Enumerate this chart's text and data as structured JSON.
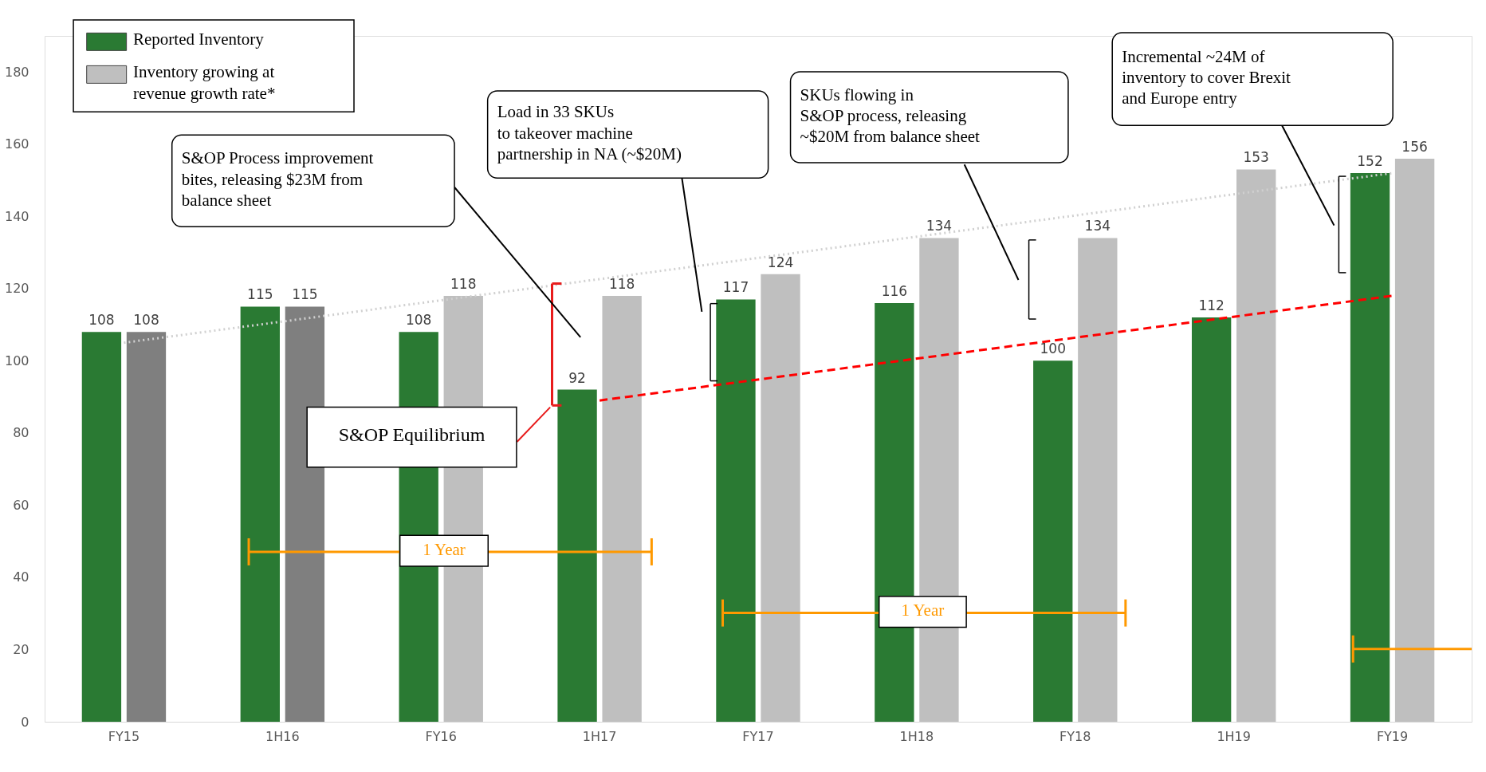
{
  "chart_data": {
    "type": "bar",
    "categories": [
      "FY15",
      "1H16",
      "FY16",
      "1H17",
      "FY17",
      "1H18",
      "FY18",
      "1H19",
      "FY19"
    ],
    "series": [
      {
        "name": "Reported Inventory",
        "color": "#2a7a33",
        "values": [
          108,
          115,
          108,
          92,
          117,
          116,
          100,
          112,
          152
        ],
        "value_labels": [
          "108",
          "115",
          "108",
          "92",
          "117",
          "116",
          "100",
          "112",
          "152"
        ]
      },
      {
        "name": "Inventory growing at revenue growth rate*",
        "color": "#bfbfbf",
        "colors": [
          "#7f7f7f",
          "#7f7f7f",
          "#bfbfbf",
          "#bfbfbf",
          "#bfbfbf",
          "#bfbfbf",
          "#bfbfbf",
          "#bfbfbf",
          "#bfbfbf"
        ],
        "values": [
          108,
          115,
          118,
          118,
          124,
          134,
          134,
          153,
          156
        ],
        "value_labels": [
          "108",
          "115",
          "118",
          "118",
          "124",
          "134",
          "134",
          "153",
          "156"
        ]
      },
      {
        "type": "line",
        "color": "#d0d0d0",
        "line_style": "dotted",
        "x": [
          "FY15",
          "FY19"
        ],
        "values": [
          105,
          152
        ]
      },
      {
        "type": "line",
        "color": "#ff0000",
        "line_style": "dashed",
        "x": [
          "1H17",
          "FY19"
        ],
        "values": [
          89,
          118
        ]
      }
    ],
    "ylim": [
      0,
      190
    ],
    "yticks": [
      0,
      20,
      40,
      60,
      80,
      100,
      120,
      140,
      160,
      180
    ],
    "grid": false,
    "legend": "top left",
    "annotations": [
      "S&OP Process improvement\nbites, releasing $23M from\nbalance sheet",
      "Load in 33 SKUs\nto takeover machine\npartnership in NA (~$20M)",
      "SKUs flowing in\nS&OP process, releasing\n~$20M from balance sheet",
      "Incremental ~24M of\ninventory to cover Brexit\nand Europe entry",
      "S&OP Equilibrium",
      "1 Year",
      "1 Year"
    ]
  }
}
